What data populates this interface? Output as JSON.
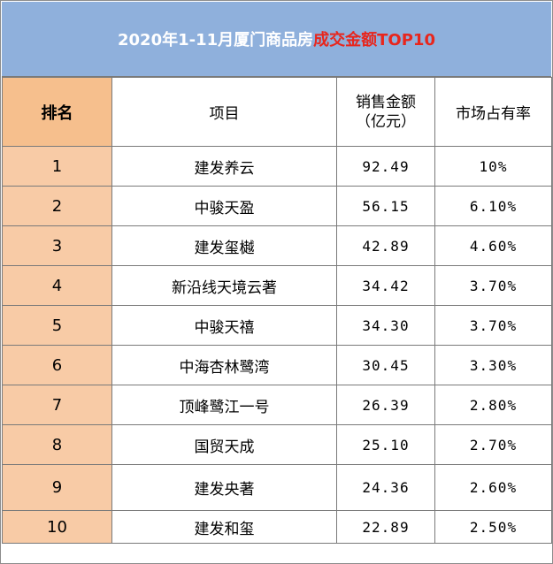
{
  "title": {
    "prefix": "2020年1-11月厦门商品房",
    "accent": "成交金额TOP10"
  },
  "columns": {
    "rank": "排名",
    "project": "项目",
    "sales_line1": "销售金额",
    "sales_line2": "（亿元）",
    "share": "市场占有率"
  },
  "rows": [
    {
      "rank": "1",
      "project": "建发养云",
      "sales": "92.49",
      "share": "10%"
    },
    {
      "rank": "2",
      "project": "中骏天盈",
      "sales": "56.15",
      "share": "6.10%"
    },
    {
      "rank": "3",
      "project": "建发玺樾",
      "sales": "42.89",
      "share": "4.60%"
    },
    {
      "rank": "4",
      "project": "新沿线天境云著",
      "sales": "34.42",
      "share": "3.70%"
    },
    {
      "rank": "5",
      "project": "中骏天禧",
      "sales": "34.30",
      "share": "3.70%"
    },
    {
      "rank": "6",
      "project": "中海杏林鹭湾",
      "sales": "30.45",
      "share": "3.30%"
    },
    {
      "rank": "7",
      "project": "顶峰鹭江一号",
      "sales": "26.39",
      "share": "2.80%"
    },
    {
      "rank": "8",
      "project": "国贸天成",
      "sales": "25.10",
      "share": "2.70%"
    },
    {
      "rank": "9",
      "project": "建发央著",
      "sales": "24.36",
      "share": "2.60%"
    },
    {
      "rank": "10",
      "project": "建发和玺",
      "sales": "22.89",
      "share": "2.50%"
    }
  ],
  "colors": {
    "title_bg": "#8fb0dc",
    "title_accent": "#e8261d",
    "rank_header_bg": "#f6bf8d",
    "rank_cell_bg": "#f8cba6",
    "border": "#7a7a7a"
  }
}
